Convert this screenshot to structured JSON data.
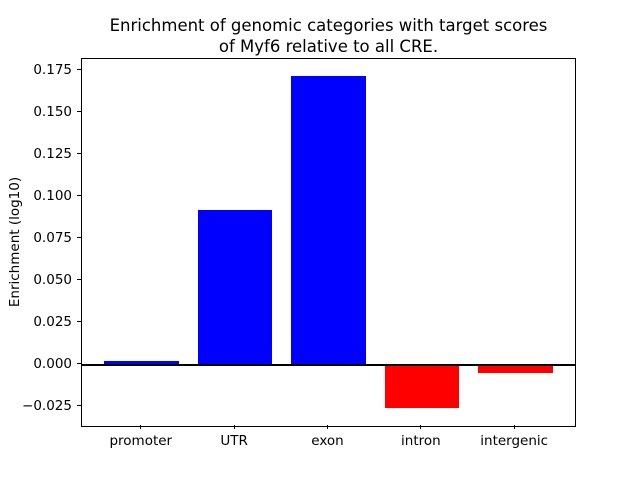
{
  "figure": {
    "title_line1": "Enrichment of genomic categories with target scores",
    "title_line2": "of Myf6 relative to all CRE."
  },
  "chart_data": {
    "type": "bar",
    "title": "Enrichment of genomic categories with target scores of Myf6 relative to all CRE.",
    "xlabel": "",
    "ylabel": "Enrichment (log10)",
    "categories": [
      "promoter",
      "UTR",
      "exon",
      "intron",
      "intergenic"
    ],
    "values": [
      0.002,
      0.092,
      0.172,
      -0.026,
      -0.005
    ],
    "bar_colors": [
      "#0000ff",
      "#0000ff",
      "#0000ff",
      "#ff0000",
      "#ff0000"
    ],
    "positive_color": "#0000ff",
    "negative_color": "#ff0000",
    "bar_width": 0.8,
    "xlim": [
      -0.64,
      4.64
    ],
    "ylim": [
      -0.0365,
      0.182
    ],
    "yticks": [
      -0.025,
      0.0,
      0.025,
      0.05,
      0.075,
      0.1,
      0.125,
      0.15,
      0.175
    ],
    "ytick_labels": [
      "−0.025",
      "0.000",
      "0.025",
      "0.050",
      "0.075",
      "0.100",
      "0.125",
      "0.150",
      "0.175"
    ],
    "zero_line": true,
    "grid": false,
    "legend": "none"
  }
}
